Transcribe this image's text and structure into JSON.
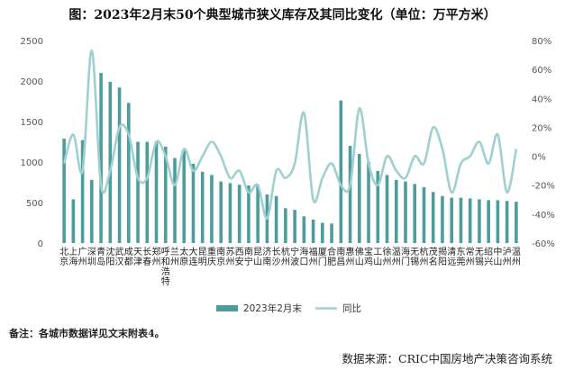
{
  "title": "图：2023年2月末50个典型城市狭义库存及其同比变化（单位：万平方米）",
  "note": "备注：各城市数据详见文末附表4。",
  "source": "数据来源：CRIC中国房地产决策咨询系统",
  "colors": {
    "bar": "#4e9c9c",
    "line": "#9fd0d0"
  },
  "chart_data": {
    "type": "bar",
    "categories": [
      "北京",
      "上海",
      "广州",
      "深圳",
      "青岛",
      "沈阳",
      "武汉",
      "成都",
      "天津",
      "长春",
      "郑州",
      "呼和浩特",
      "兰州",
      "太原",
      "大连",
      "昆明",
      "重庆",
      "南京",
      "苏州",
      "西安",
      "南宁",
      "昆山",
      "济南",
      "长沙",
      "杭州",
      "宁波",
      "海口",
      "福州",
      "厦门",
      "合肥",
      "南昌",
      "惠州",
      "佛山",
      "宝鸡",
      "工山",
      "徐州",
      "温州",
      "海门",
      "无锡",
      "杭州",
      "茂名",
      "揭阳",
      "清远",
      "东莞",
      "常州",
      "无锡",
      "绍兴",
      "中山",
      "泸州",
      "温州"
    ],
    "series": [
      {
        "name": "2023年2月末",
        "axis": "left",
        "values": [
          1290,
          540,
          1270,
          780,
          2100,
          1990,
          1920,
          1730,
          1250,
          1250,
          1250,
          1190,
          1050,
          1160,
          980,
          880,
          840,
          760,
          740,
          720,
          710,
          720,
          600,
          580,
          430,
          410,
          330,
          290,
          250,
          240,
          1760,
          1200,
          1100,
          1000,
          890,
          840,
          780,
          760,
          730,
          690,
          630,
          580,
          560,
          560,
          550,
          540,
          530,
          530,
          520,
          510
        ]
      },
      {
        "name": "同比",
        "axis": "right",
        "values": [
          -5,
          15,
          -10,
          73,
          -20,
          -10,
          20,
          15,
          -15,
          -15,
          10,
          0,
          -20,
          5,
          -10,
          0,
          10,
          0,
          -15,
          -10,
          -25,
          -20,
          -43,
          -10,
          -15,
          -5,
          30,
          -30,
          -15,
          -5,
          -20,
          -20,
          33,
          -5,
          -20,
          0,
          -10,
          -15,
          0,
          -5,
          20,
          5,
          -25,
          -5,
          0,
          10,
          -5,
          15,
          -25,
          5
        ]
      }
    ],
    "y_left": {
      "min": 0,
      "max": 2500,
      "step": 500
    },
    "y_right": {
      "min": -60,
      "max": 80,
      "step": 20,
      "unit": "%"
    },
    "legend": "bottom-center"
  }
}
